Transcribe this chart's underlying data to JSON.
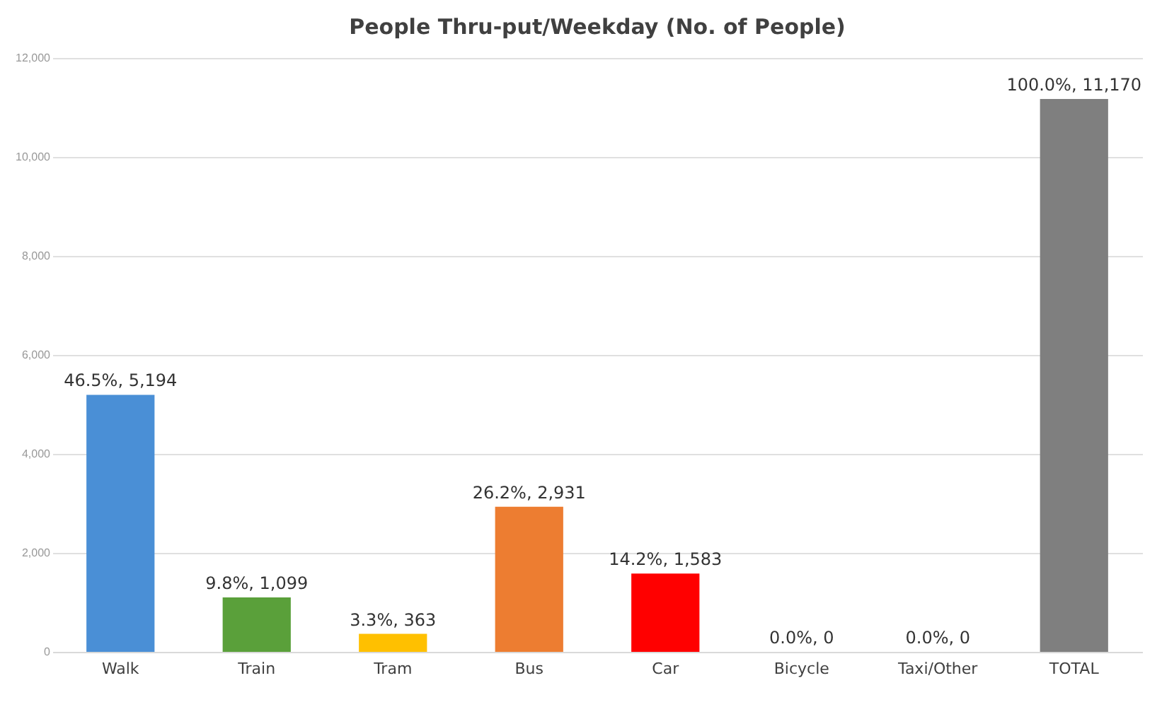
{
  "chart_data": {
    "type": "bar",
    "title": "People Thru-put/Weekday (No. of People)",
    "categories": [
      "Walk",
      "Train",
      "Tram",
      "Bus",
      "Car",
      "Bicycle",
      "Taxi/Other",
      "TOTAL"
    ],
    "values": [
      5194,
      1099,
      363,
      2931,
      1583,
      0,
      0,
      11170
    ],
    "colors": [
      "#4a8fd6",
      "#5aa03a",
      "#ffc000",
      "#ed7d31",
      "#ff0000",
      "#a5a5a5",
      "#a5a5a5",
      "#7f7f7f"
    ],
    "value_labels": [
      "46.5%, 5,194",
      "9.8%, 1,099",
      "3.3%, 363",
      "26.2%, 2,931",
      "14.2%, 1,583",
      "0.0%, 0",
      "0.0%, 0",
      "100.0%, 11,170"
    ],
    "ylim": [
      0,
      12000
    ],
    "yticks": [
      0,
      {
        "value": 2000,
        "label": "2,000"
      },
      {
        "value": 4000,
        "label": "4,000"
      },
      {
        "value": 6000,
        "label": "6,000"
      },
      {
        "value": 8000,
        "label": "8,000"
      },
      {
        "value": 10000,
        "label": "10,000"
      },
      {
        "value": 12000,
        "label": "12,000"
      }
    ],
    "grid": "y"
  }
}
